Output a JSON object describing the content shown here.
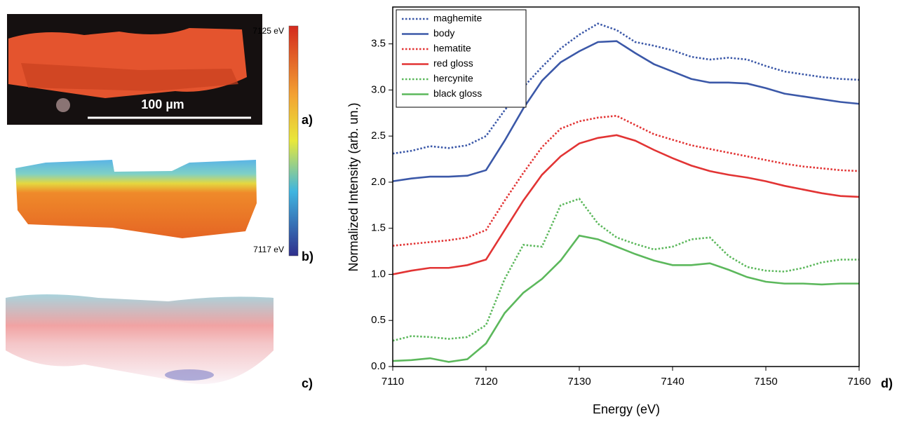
{
  "chart_data": {
    "type": "line",
    "x_label": "Energy (eV)",
    "y_label": "Normalized Intensity (arb. un.)",
    "x": [
      7110,
      7112,
      7114,
      7116,
      7118,
      7120,
      7122,
      7124,
      7126,
      7128,
      7130,
      7132,
      7134,
      7136,
      7138,
      7140,
      7142,
      7144,
      7146,
      7148,
      7150,
      7152,
      7154,
      7156,
      7158,
      7160
    ],
    "xlim": [
      7110,
      7160
    ],
    "xticks": [
      7110,
      7120,
      7130,
      7140,
      7150,
      7160
    ],
    "ylim": [
      0,
      3.9
    ],
    "yticks": [
      {
        "value": 0,
        "label": "0.0"
      },
      {
        "value": 0.5,
        "label": "0.5"
      },
      {
        "value": 1,
        "label": "1.0"
      },
      {
        "value": 1.5,
        "label": "1.5"
      },
      {
        "value": 2,
        "label": "2.0"
      },
      {
        "value": 2.5,
        "label": "2.5"
      },
      {
        "value": 3,
        "label": "3.0"
      },
      {
        "value": 3.5,
        "label": "3.5"
      }
    ],
    "legend": "upper left",
    "series": [
      {
        "name": "maghemite",
        "color": "#3b58a8",
        "style": "dotted",
        "values": [
          2.31,
          2.34,
          2.39,
          2.37,
          2.4,
          2.5,
          2.78,
          3.03,
          3.25,
          3.45,
          3.6,
          3.72,
          3.65,
          3.52,
          3.48,
          3.43,
          3.36,
          3.33,
          3.35,
          3.33,
          3.26,
          3.2,
          3.17,
          3.14,
          3.12,
          3.11
        ]
      },
      {
        "name": "body",
        "color": "#3b58a8",
        "style": "solid",
        "values": [
          2.01,
          2.04,
          2.06,
          2.06,
          2.07,
          2.13,
          2.45,
          2.8,
          3.1,
          3.3,
          3.42,
          3.52,
          3.53,
          3.4,
          3.28,
          3.2,
          3.12,
          3.08,
          3.08,
          3.07,
          3.02,
          2.96,
          2.93,
          2.9,
          2.87,
          2.85
        ]
      },
      {
        "name": "hematite",
        "color": "#e23434",
        "style": "dotted",
        "values": [
          1.31,
          1.33,
          1.35,
          1.37,
          1.4,
          1.48,
          1.8,
          2.1,
          2.38,
          2.58,
          2.66,
          2.7,
          2.72,
          2.62,
          2.52,
          2.46,
          2.4,
          2.36,
          2.32,
          2.28,
          2.24,
          2.2,
          2.17,
          2.15,
          2.13,
          2.12
        ]
      },
      {
        "name": "red gloss",
        "color": "#e23434",
        "style": "solid",
        "values": [
          1.0,
          1.04,
          1.07,
          1.07,
          1.1,
          1.16,
          1.48,
          1.8,
          2.08,
          2.28,
          2.42,
          2.48,
          2.51,
          2.45,
          2.35,
          2.26,
          2.18,
          2.12,
          2.08,
          2.05,
          2.01,
          1.96,
          1.92,
          1.88,
          1.85,
          1.84
        ]
      },
      {
        "name": "hercynite",
        "color": "#5cb85c",
        "style": "dotted",
        "values": [
          0.28,
          0.33,
          0.32,
          0.3,
          0.32,
          0.45,
          0.95,
          1.32,
          1.3,
          1.75,
          1.82,
          1.55,
          1.4,
          1.33,
          1.27,
          1.3,
          1.38,
          1.4,
          1.2,
          1.08,
          1.04,
          1.03,
          1.07,
          1.13,
          1.16,
          1.16
        ]
      },
      {
        "name": "black gloss",
        "color": "#5cb85c",
        "style": "solid",
        "values": [
          0.06,
          0.07,
          0.09,
          0.05,
          0.08,
          0.25,
          0.58,
          0.8,
          0.95,
          1.15,
          1.42,
          1.38,
          1.3,
          1.22,
          1.15,
          1.1,
          1.1,
          1.12,
          1.05,
          0.97,
          0.92,
          0.9,
          0.9,
          0.89,
          0.9,
          0.9
        ]
      }
    ]
  },
  "image_labels": {
    "scale_bar": "100 µm",
    "colorbar_top": "7125 eV",
    "colorbar_bottom": "7117 eV"
  },
  "panel_labels": [
    "a)",
    "b)",
    "c)",
    "d)"
  ]
}
